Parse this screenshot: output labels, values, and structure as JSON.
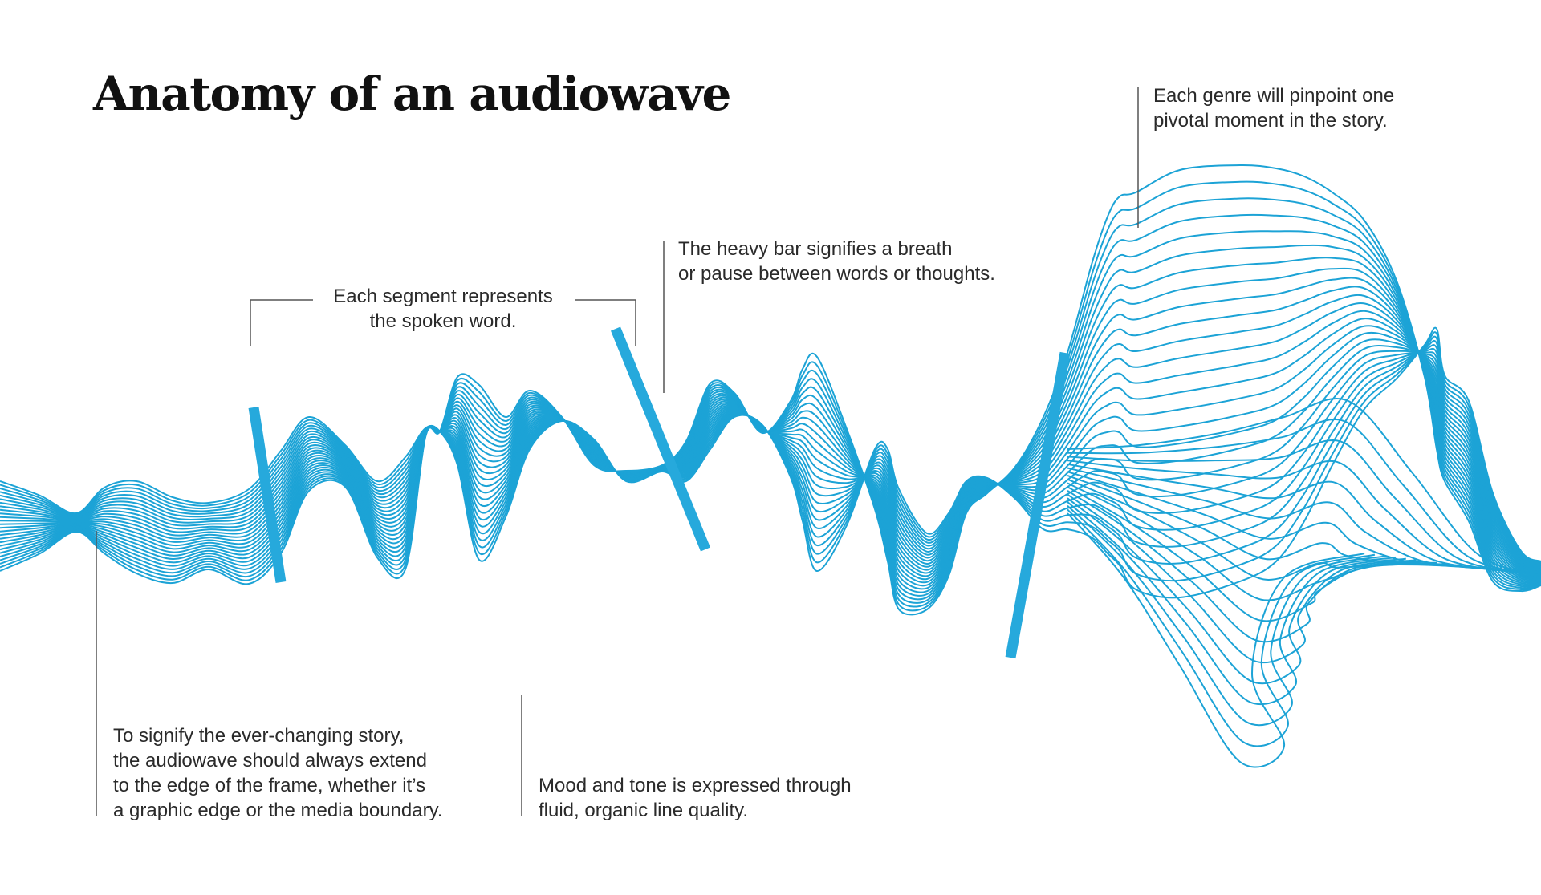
{
  "title": "Anatomy of an audiowave",
  "annotations": {
    "segment": [
      "Each segment represents",
      "the spoken word."
    ],
    "bar": [
      "The heavy bar signifies a breath",
      "or pause between words or thoughts."
    ],
    "genre": [
      "Each genre will pinpoint one",
      "pivotal moment in the story."
    ],
    "edge": [
      "To signify the ever-changing story,",
      "the audiowave should always extend",
      "to the edge of the frame, whether it’s",
      "a graphic edge or the media boundary."
    ],
    "mood": [
      "Mood and tone is expressed through",
      "fluid, organic line quality."
    ]
  },
  "colors": {
    "wave": "#1ca3d6",
    "bar": "#26a9dc",
    "text": "#2a2a2a",
    "rule": "#555555"
  }
}
